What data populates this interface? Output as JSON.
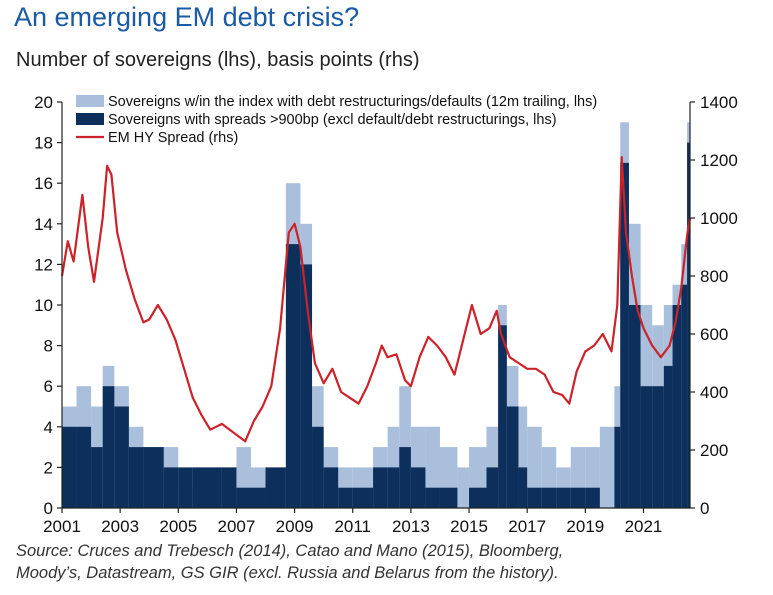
{
  "header": {
    "title": "An emerging EM debt crisis?",
    "subtitle": "Number of sovereigns (lhs), basis points (rhs)"
  },
  "footer": {
    "source_line1": "Source: Cruces and Trebesch (2014), Catao and Mano (2015), Bloomberg,",
    "source_line2": "Moody’s, Datastream, GS GIR (excl. Russia and Belarus from the history)."
  },
  "colors": {
    "light_bar": "#a9bfdc",
    "dark_bar": "#0d2f5c",
    "line": "#cc2229",
    "title": "#1a5aa6"
  },
  "chart_data": {
    "type": "bar+line",
    "x_range": [
      2001,
      2022.6
    ],
    "x_ticks": [
      "2001",
      "2003",
      "2005",
      "2007",
      "2009",
      "2011",
      "2013",
      "2015",
      "2017",
      "2019",
      "2021"
    ],
    "y_left": {
      "range": [
        0,
        20
      ],
      "ticks": [
        "0",
        "2",
        "4",
        "6",
        "8",
        "10",
        "12",
        "14",
        "16",
        "18",
        "20"
      ]
    },
    "y_right": {
      "range": [
        0,
        1400
      ],
      "ticks": [
        "0",
        "200",
        "400",
        "600",
        "800",
        "1000",
        "1200",
        "1400"
      ]
    },
    "legend_position": "top",
    "series": [
      {
        "name": "Sovereigns w/in the index with debt restructurings/defaults (12m trailing, lhs)",
        "kind": "bar",
        "axis": "left",
        "color": "#a9bfdc",
        "points": [
          [
            2001.0,
            5
          ],
          [
            2001.5,
            6
          ],
          [
            2002.0,
            5
          ],
          [
            2002.4,
            7
          ],
          [
            2002.8,
            6
          ],
          [
            2003.3,
            4
          ],
          [
            2003.8,
            3
          ],
          [
            2004.5,
            3
          ],
          [
            2005.0,
            1
          ],
          [
            2005.5,
            2
          ],
          [
            2006.5,
            2
          ],
          [
            2007.0,
            3
          ],
          [
            2007.5,
            2
          ],
          [
            2008.0,
            2
          ],
          [
            2008.7,
            16
          ],
          [
            2009.2,
            14
          ],
          [
            2009.6,
            6
          ],
          [
            2010.0,
            3
          ],
          [
            2010.5,
            2
          ],
          [
            2011.0,
            2
          ],
          [
            2011.7,
            3
          ],
          [
            2012.2,
            4
          ],
          [
            2012.6,
            6
          ],
          [
            2013.0,
            4
          ],
          [
            2013.5,
            4
          ],
          [
            2014.0,
            3
          ],
          [
            2014.6,
            2
          ],
          [
            2015.0,
            3
          ],
          [
            2015.6,
            4
          ],
          [
            2016.0,
            10
          ],
          [
            2016.3,
            7
          ],
          [
            2016.7,
            5
          ],
          [
            2017.0,
            4
          ],
          [
            2017.5,
            3
          ],
          [
            2018.0,
            2
          ],
          [
            2018.5,
            3
          ],
          [
            2019.0,
            3
          ],
          [
            2019.5,
            4
          ],
          [
            2020.0,
            6
          ],
          [
            2020.2,
            19
          ],
          [
            2020.5,
            14
          ],
          [
            2020.9,
            10
          ],
          [
            2021.3,
            9
          ],
          [
            2021.7,
            10
          ],
          [
            2022.0,
            11
          ],
          [
            2022.3,
            13
          ],
          [
            2022.5,
            19
          ]
        ]
      },
      {
        "name": "Sovereigns with spreads >900bp (excl default/debt restructurings, lhs)",
        "kind": "bar",
        "axis": "left",
        "color": "#0d2f5c",
        "points": [
          [
            2001.0,
            4
          ],
          [
            2001.5,
            4
          ],
          [
            2002.0,
            3
          ],
          [
            2002.4,
            6
          ],
          [
            2002.8,
            5
          ],
          [
            2003.3,
            3
          ],
          [
            2003.8,
            3
          ],
          [
            2004.5,
            2
          ],
          [
            2005.0,
            2
          ],
          [
            2005.5,
            2
          ],
          [
            2006.5,
            2
          ],
          [
            2007.0,
            1
          ],
          [
            2007.5,
            1
          ],
          [
            2008.0,
            2
          ],
          [
            2008.7,
            13
          ],
          [
            2009.2,
            12
          ],
          [
            2009.6,
            4
          ],
          [
            2010.0,
            2
          ],
          [
            2010.5,
            1
          ],
          [
            2011.0,
            1
          ],
          [
            2011.7,
            2
          ],
          [
            2012.2,
            2
          ],
          [
            2012.6,
            3
          ],
          [
            2013.0,
            2
          ],
          [
            2013.5,
            1
          ],
          [
            2014.0,
            1
          ],
          [
            2014.6,
            0
          ],
          [
            2015.0,
            1
          ],
          [
            2015.6,
            2
          ],
          [
            2016.0,
            9
          ],
          [
            2016.3,
            5
          ],
          [
            2016.7,
            2
          ],
          [
            2017.0,
            1
          ],
          [
            2017.5,
            1
          ],
          [
            2018.0,
            1
          ],
          [
            2018.5,
            1
          ],
          [
            2019.0,
            1
          ],
          [
            2019.5,
            0
          ],
          [
            2020.0,
            4
          ],
          [
            2020.2,
            17
          ],
          [
            2020.5,
            10
          ],
          [
            2020.9,
            6
          ],
          [
            2021.3,
            6
          ],
          [
            2021.7,
            7
          ],
          [
            2022.0,
            10
          ],
          [
            2022.3,
            11
          ],
          [
            2022.5,
            18
          ]
        ]
      },
      {
        "name": "EM HY Spread (rhs)",
        "kind": "line",
        "axis": "right",
        "color": "#cc2229",
        "points": [
          [
            2001.0,
            800
          ],
          [
            2001.2,
            920
          ],
          [
            2001.4,
            850
          ],
          [
            2001.7,
            1080
          ],
          [
            2001.9,
            900
          ],
          [
            2002.1,
            780
          ],
          [
            2002.4,
            1000
          ],
          [
            2002.55,
            1180
          ],
          [
            2002.7,
            1150
          ],
          [
            2002.9,
            950
          ],
          [
            2003.2,
            820
          ],
          [
            2003.5,
            720
          ],
          [
            2003.8,
            640
          ],
          [
            2004.0,
            650
          ],
          [
            2004.3,
            700
          ],
          [
            2004.6,
            650
          ],
          [
            2004.9,
            580
          ],
          [
            2005.2,
            480
          ],
          [
            2005.5,
            380
          ],
          [
            2005.8,
            320
          ],
          [
            2006.1,
            270
          ],
          [
            2006.5,
            290
          ],
          [
            2006.9,
            260
          ],
          [
            2007.3,
            230
          ],
          [
            2007.6,
            300
          ],
          [
            2007.9,
            350
          ],
          [
            2008.2,
            420
          ],
          [
            2008.5,
            620
          ],
          [
            2008.8,
            950
          ],
          [
            2009.0,
            980
          ],
          [
            2009.2,
            900
          ],
          [
            2009.45,
            680
          ],
          [
            2009.7,
            500
          ],
          [
            2010.0,
            430
          ],
          [
            2010.3,
            480
          ],
          [
            2010.6,
            400
          ],
          [
            2010.9,
            380
          ],
          [
            2011.2,
            360
          ],
          [
            2011.5,
            420
          ],
          [
            2011.8,
            500
          ],
          [
            2012.0,
            560
          ],
          [
            2012.2,
            520
          ],
          [
            2012.5,
            530
          ],
          [
            2012.8,
            440
          ],
          [
            2013.0,
            420
          ],
          [
            2013.3,
            520
          ],
          [
            2013.6,
            590
          ],
          [
            2013.9,
            560
          ],
          [
            2014.2,
            520
          ],
          [
            2014.5,
            460
          ],
          [
            2014.8,
            580
          ],
          [
            2015.1,
            700
          ],
          [
            2015.4,
            600
          ],
          [
            2015.7,
            620
          ],
          [
            2015.95,
            680
          ],
          [
            2016.1,
            600
          ],
          [
            2016.4,
            520
          ],
          [
            2016.7,
            500
          ],
          [
            2017.0,
            480
          ],
          [
            2017.3,
            480
          ],
          [
            2017.6,
            460
          ],
          [
            2017.9,
            400
          ],
          [
            2018.2,
            390
          ],
          [
            2018.45,
            360
          ],
          [
            2018.7,
            470
          ],
          [
            2019.0,
            540
          ],
          [
            2019.3,
            560
          ],
          [
            2019.6,
            600
          ],
          [
            2019.9,
            540
          ],
          [
            2020.1,
            700
          ],
          [
            2020.25,
            1210
          ],
          [
            2020.4,
            950
          ],
          [
            2020.6,
            800
          ],
          [
            2020.8,
            680
          ],
          [
            2021.0,
            620
          ],
          [
            2021.3,
            560
          ],
          [
            2021.6,
            520
          ],
          [
            2021.9,
            560
          ],
          [
            2022.1,
            640
          ],
          [
            2022.3,
            760
          ],
          [
            2022.5,
            940
          ],
          [
            2022.6,
            1000
          ]
        ]
      }
    ]
  }
}
